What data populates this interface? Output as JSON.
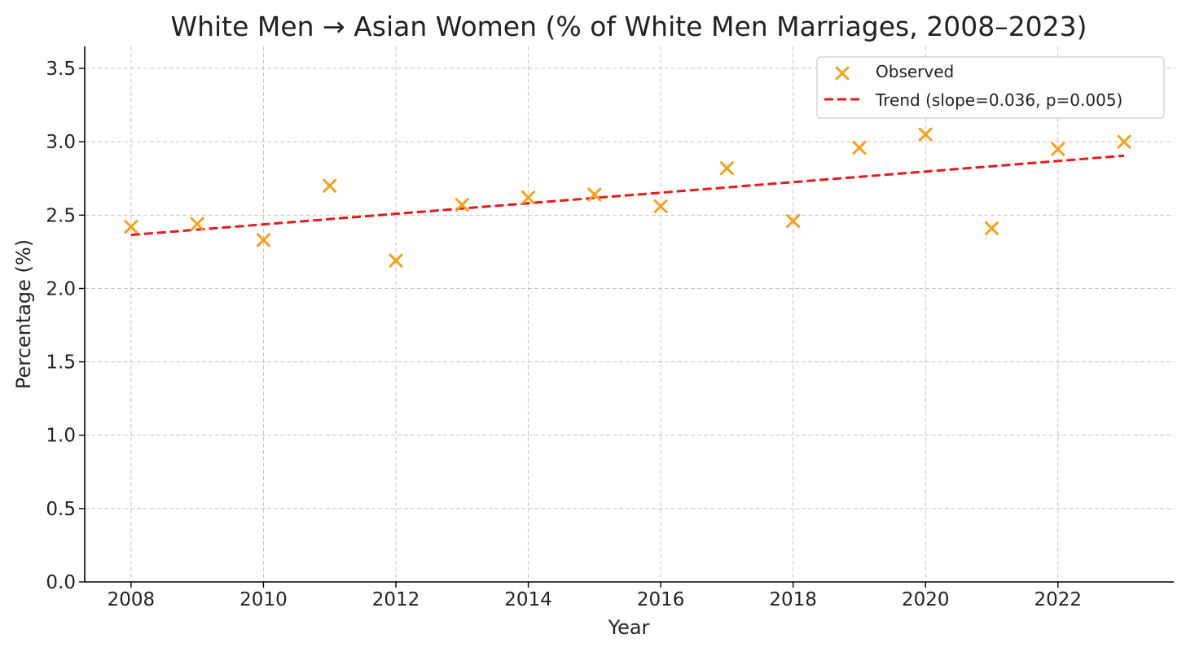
{
  "chart_data": {
    "type": "scatter",
    "title": "White Men → Asian Women (% of White Men Marriages, 2008–2023)",
    "xlabel": "Year",
    "ylabel": "Percentage (%)",
    "xlim": [
      2007.3,
      2023.75
    ],
    "ylim": [
      0.0,
      3.65
    ],
    "xticks": [
      2008,
      2010,
      2012,
      2014,
      2016,
      2018,
      2020,
      2022
    ],
    "yticks": [
      0.0,
      0.5,
      1.0,
      1.5,
      2.0,
      2.5,
      3.0,
      3.5
    ],
    "ytick_labels": [
      "0.0",
      "0.5",
      "1.0",
      "1.5",
      "2.0",
      "2.5",
      "3.0",
      "3.5"
    ],
    "grid": true,
    "legend_position": "top-right",
    "series": [
      {
        "name": "Observed",
        "kind": "scatter",
        "marker": "x",
        "color": "#f4a11a",
        "x": [
          2008,
          2009,
          2010,
          2011,
          2012,
          2013,
          2014,
          2015,
          2016,
          2017,
          2018,
          2019,
          2020,
          2021,
          2022,
          2023
        ],
        "y": [
          2.42,
          2.44,
          2.33,
          2.7,
          2.19,
          2.57,
          2.62,
          2.64,
          2.56,
          2.82,
          2.46,
          2.96,
          3.05,
          2.41,
          2.95,
          3.0
        ]
      },
      {
        "name": "Trend (slope=0.036, p=0.005)",
        "kind": "line",
        "style": "dashed",
        "color": "#e8191a",
        "x": [
          2008,
          2023
        ],
        "y": [
          2.365,
          2.905
        ]
      }
    ]
  }
}
